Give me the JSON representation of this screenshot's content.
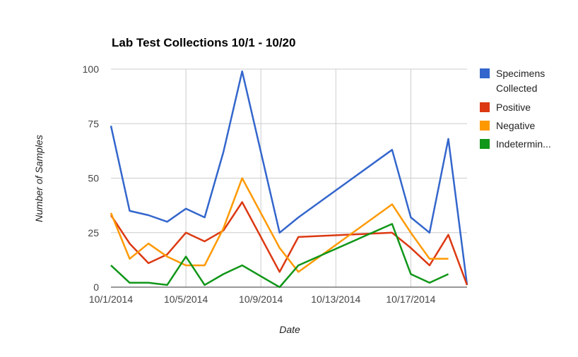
{
  "chart_data": {
    "type": "line",
    "title": "Lab Test Collections 10/1 - 10/20",
    "xlabel": "Date",
    "ylabel": "Number of Samples",
    "ylim": [
      0,
      100
    ],
    "xlim": [
      "10/1/2014",
      "10/20/2014"
    ],
    "y_ticks": [
      0,
      25,
      50,
      75,
      100
    ],
    "x_ticks": [
      "10/1/2014",
      "10/5/2014",
      "10/9/2014",
      "10/13/2014",
      "10/17/2014"
    ],
    "grid": true,
    "legend_position": "right",
    "x": [
      "10/1/2014",
      "10/2/2014",
      "10/3/2014",
      "10/4/2014",
      "10/5/2014",
      "10/6/2014",
      "10/7/2014",
      "10/8/2014",
      "10/10/2014",
      "10/11/2014",
      "10/16/2014",
      "10/17/2014",
      "10/18/2014",
      "10/19/2014",
      "10/20/2014"
    ],
    "series": [
      {
        "name": "Specimens Collected",
        "color": "#3366cc",
        "values": [
          74,
          35,
          33,
          30,
          36,
          32,
          62,
          99,
          25,
          32,
          63,
          32,
          25,
          68,
          1
        ]
      },
      {
        "name": "Positive",
        "color": "#dc3912",
        "values": [
          33,
          20,
          11,
          15,
          25,
          21,
          26,
          39,
          7,
          23,
          25,
          18,
          10,
          24,
          1
        ]
      },
      {
        "name": "Negative",
        "color": "#ff9900",
        "values": [
          34,
          13,
          20,
          14,
          10,
          10,
          27,
          50,
          18,
          7,
          38,
          25,
          13,
          13,
          null
        ]
      },
      {
        "name": "Indetermin...",
        "color": "#109618",
        "values": [
          10,
          2,
          2,
          1,
          14,
          1,
          6,
          10,
          0,
          10,
          29,
          6,
          2,
          6,
          null
        ]
      }
    ]
  }
}
